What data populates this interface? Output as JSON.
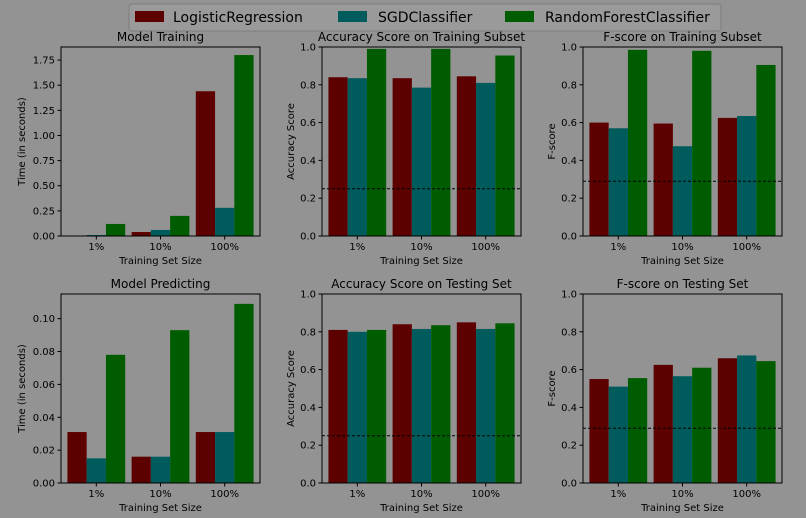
{
  "colors": {
    "background": "#939393",
    "LogisticRegression": "#5c0000",
    "SGDClassifier": "#005c5c",
    "RandomForestClassifier": "#005c00",
    "legend_bg": "#9a9a9a"
  },
  "legend": {
    "placement": "top-center",
    "items": [
      "LogisticRegression",
      "SGDClassifier",
      "RandomForestClassifier"
    ]
  },
  "chart_data": [
    {
      "type": "bar",
      "title": "Model Training",
      "xlabel": "Training Set Size",
      "ylabel": "Time (in seconds)",
      "categories": [
        "1%",
        "10%",
        "100%"
      ],
      "ylim": [
        0,
        1.88
      ],
      "yticks": [
        0.0,
        0.25,
        0.5,
        0.75,
        1.0,
        1.25,
        1.5,
        1.75
      ],
      "yticklabels": [
        "0.00",
        "0.25",
        "0.50",
        "0.75",
        "1.00",
        "1.25",
        "1.50",
        "1.75"
      ],
      "series": [
        {
          "name": "LogisticRegression",
          "values": [
            0.005,
            0.04,
            1.44
          ]
        },
        {
          "name": "SGDClassifier",
          "values": [
            0.01,
            0.06,
            0.28
          ]
        },
        {
          "name": "RandomForestClassifier",
          "values": [
            0.12,
            0.2,
            1.8
          ]
        }
      ]
    },
    {
      "type": "bar",
      "title": "Accuracy Score on Training Subset",
      "xlabel": "Training Set Size",
      "ylabel": "Accuracy Score",
      "categories": [
        "1%",
        "10%",
        "100%"
      ],
      "ylim": [
        0,
        1.0
      ],
      "yticks": [
        0.0,
        0.2,
        0.4,
        0.6,
        0.8,
        1.0
      ],
      "yticklabels": [
        "0.0",
        "0.2",
        "0.4",
        "0.6",
        "0.8",
        "1.0"
      ],
      "baseline": 0.25,
      "series": [
        {
          "name": "LogisticRegression",
          "values": [
            0.84,
            0.835,
            0.845
          ]
        },
        {
          "name": "SGDClassifier",
          "values": [
            0.835,
            0.785,
            0.81
          ]
        },
        {
          "name": "RandomForestClassifier",
          "values": [
            0.99,
            0.99,
            0.955
          ]
        }
      ]
    },
    {
      "type": "bar",
      "title": "F-score on Training Subset",
      "xlabel": "Training Set Size",
      "ylabel": "F-score",
      "categories": [
        "1%",
        "10%",
        "100%"
      ],
      "ylim": [
        0,
        1.0
      ],
      "yticks": [
        0.0,
        0.2,
        0.4,
        0.6,
        0.8,
        1.0
      ],
      "yticklabels": [
        "0.0",
        "0.2",
        "0.4",
        "0.6",
        "0.8",
        "1.0"
      ],
      "baseline": 0.29,
      "series": [
        {
          "name": "LogisticRegression",
          "values": [
            0.6,
            0.595,
            0.625
          ]
        },
        {
          "name": "SGDClassifier",
          "values": [
            0.57,
            0.475,
            0.635
          ]
        },
        {
          "name": "RandomForestClassifier",
          "values": [
            0.985,
            0.98,
            0.905
          ]
        }
      ]
    },
    {
      "type": "bar",
      "title": "Model Predicting",
      "xlabel": "Training Set Size",
      "ylabel": "Time (in seconds)",
      "categories": [
        "1%",
        "10%",
        "100%"
      ],
      "ylim": [
        0,
        0.115
      ],
      "yticks": [
        0.0,
        0.02,
        0.04,
        0.06,
        0.08,
        0.1
      ],
      "yticklabels": [
        "0.00",
        "0.02",
        "0.04",
        "0.06",
        "0.08",
        "0.10"
      ],
      "series": [
        {
          "name": "LogisticRegression",
          "values": [
            0.031,
            0.016,
            0.031
          ]
        },
        {
          "name": "SGDClassifier",
          "values": [
            0.015,
            0.016,
            0.031
          ]
        },
        {
          "name": "RandomForestClassifier",
          "values": [
            0.078,
            0.093,
            0.109
          ]
        }
      ]
    },
    {
      "type": "bar",
      "title": "Accuracy Score on Testing Set",
      "xlabel": "Training Set Size",
      "ylabel": "Accuracy Score",
      "categories": [
        "1%",
        "10%",
        "100%"
      ],
      "ylim": [
        0,
        1.0
      ],
      "yticks": [
        0.0,
        0.2,
        0.4,
        0.6,
        0.8,
        1.0
      ],
      "yticklabels": [
        "0.0",
        "0.2",
        "0.4",
        "0.6",
        "0.8",
        "1.0"
      ],
      "baseline": 0.25,
      "series": [
        {
          "name": "LogisticRegression",
          "values": [
            0.81,
            0.84,
            0.85
          ]
        },
        {
          "name": "SGDClassifier",
          "values": [
            0.8,
            0.815,
            0.815
          ]
        },
        {
          "name": "RandomForestClassifier",
          "values": [
            0.81,
            0.835,
            0.845
          ]
        }
      ]
    },
    {
      "type": "bar",
      "title": "F-score on Testing Set",
      "xlabel": "Training Set Size",
      "ylabel": "F-score",
      "categories": [
        "1%",
        "10%",
        "100%"
      ],
      "ylim": [
        0,
        1.0
      ],
      "yticks": [
        0.0,
        0.2,
        0.4,
        0.6,
        0.8,
        1.0
      ],
      "yticklabels": [
        "0.0",
        "0.2",
        "0.4",
        "0.6",
        "0.8",
        "1.0"
      ],
      "baseline": 0.29,
      "series": [
        {
          "name": "LogisticRegression",
          "values": [
            0.55,
            0.625,
            0.66
          ]
        },
        {
          "name": "SGDClassifier",
          "values": [
            0.51,
            0.565,
            0.675
          ]
        },
        {
          "name": "RandomForestClassifier",
          "values": [
            0.555,
            0.61,
            0.645
          ]
        }
      ]
    }
  ]
}
